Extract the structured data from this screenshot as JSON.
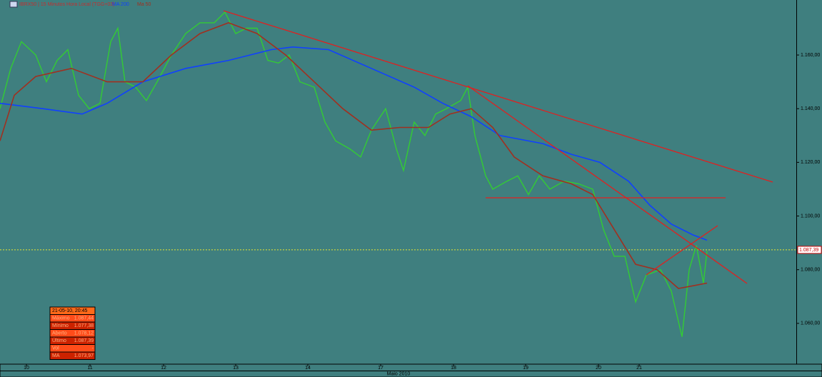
{
  "chart_data": {
    "type": "line",
    "title": "IBRX50 | 15 Minutos Hora Local (TGG+03)",
    "x_axis_label": "Maio 2010",
    "xlim": [
      0,
      1115
    ],
    "xticks": [
      {
        "value": 37,
        "label": "10"
      },
      {
        "value": 126,
        "label": "11"
      },
      {
        "value": 229,
        "label": "12"
      },
      {
        "value": 330,
        "label": "13"
      },
      {
        "value": 431,
        "label": "14"
      },
      {
        "value": 533,
        "label": "17"
      },
      {
        "value": 635,
        "label": "18"
      },
      {
        "value": 736,
        "label": "19"
      },
      {
        "value": 838,
        "label": "20"
      },
      {
        "value": 895,
        "label": "21"
      }
    ],
    "ylim": [
      1044.8,
      1180.5
    ],
    "yticks": [
      {
        "value": 1060,
        "label": "1.060,00"
      },
      {
        "value": 1080,
        "label": "1.080,00"
      },
      {
        "value": 1100,
        "label": "1.100,00"
      },
      {
        "value": 1120,
        "label": "1.120,00"
      },
      {
        "value": 1140,
        "label": "1.140,00"
      },
      {
        "value": 1160,
        "label": "1.160,00"
      }
    ],
    "last_price": {
      "value": 1087.39,
      "label": "1.087,39"
    },
    "series": [
      {
        "name": "IBRX50",
        "color": "#33cc33",
        "x": [
          0,
          15,
          30,
          50,
          65,
          80,
          95,
          110,
          125,
          140,
          155,
          165,
          175,
          190,
          205,
          220,
          240,
          260,
          280,
          300,
          315,
          330,
          345,
          360,
          375,
          390,
          405,
          420,
          440,
          455,
          470,
          490,
          505,
          520,
          540,
          555,
          565,
          580,
          595,
          610,
          625,
          645,
          655,
          665,
          680,
          690,
          710,
          725,
          740,
          755,
          770,
          790,
          810,
          830,
          845,
          860,
          875,
          890,
          905,
          925,
          940,
          955,
          965,
          975,
          985,
          990
        ],
        "values": [
          1140,
          1155,
          1165,
          1160,
          1150,
          1158,
          1162,
          1145,
          1140,
          1142,
          1165,
          1170,
          1150,
          1148,
          1143,
          1150,
          1160,
          1168,
          1172,
          1172,
          1176,
          1168,
          1170,
          1170,
          1158,
          1157,
          1160,
          1150,
          1148,
          1135,
          1128,
          1125,
          1122,
          1132,
          1140,
          1125,
          1117,
          1135,
          1130,
          1138,
          1140,
          1143,
          1148,
          1130,
          1115,
          1110,
          1113,
          1115,
          1108,
          1115,
          1110,
          1113,
          1112,
          1110,
          1095,
          1085,
          1085,
          1068,
          1078,
          1080,
          1072,
          1055,
          1080,
          1089,
          1075,
          1087
        ]
      },
      {
        "name": "MA 200",
        "color": "#1040ff",
        "x": [
          0,
          60,
          115,
          150,
          200,
          260,
          320,
          380,
          410,
          460,
          520,
          580,
          620,
          660,
          700,
          760,
          800,
          840,
          880,
          910,
          940,
          970,
          990
        ],
        "values": [
          1142,
          1140,
          1138,
          1142,
          1150,
          1155,
          1158,
          1162,
          1163,
          1162,
          1155,
          1148,
          1142,
          1137,
          1130,
          1127,
          1123,
          1120,
          1113,
          1104,
          1097,
          1093,
          1091
        ]
      },
      {
        "name": "Ma 50",
        "color": "#a03020",
        "x": [
          0,
          20,
          50,
          100,
          150,
          200,
          240,
          280,
          320,
          360,
          400,
          440,
          480,
          520,
          560,
          600,
          630,
          660,
          690,
          720,
          760,
          800,
          830,
          860,
          890,
          920,
          950,
          970,
          990
        ],
        "values": [
          1128,
          1145,
          1152,
          1155,
          1150,
          1150,
          1160,
          1168,
          1172,
          1168,
          1160,
          1150,
          1140,
          1132,
          1133,
          1133,
          1138,
          1140,
          1133,
          1122,
          1115,
          1112,
          1108,
          1095,
          1082,
          1080,
          1073,
          1074,
          1075
        ]
      }
    ],
    "info_box": {
      "header": "21-05-10, 20:45",
      "rows": [
        [
          "Máximo",
          "1.087,44"
        ],
        [
          "Mínimo",
          "1.077,38"
        ],
        [
          "Aberto",
          "1.078,12"
        ],
        [
          "Último",
          "1.087,39"
        ],
        [
          "Vol",
          "-"
        ],
        [
          "MA",
          "1.073,97"
        ]
      ]
    }
  }
}
